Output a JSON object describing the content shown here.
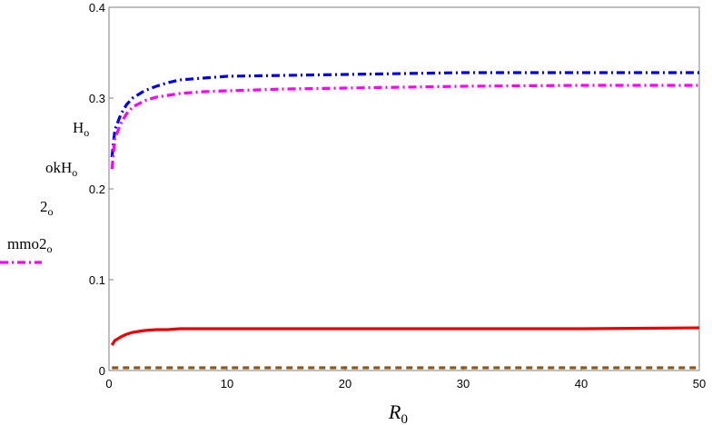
{
  "chart_data": {
    "type": "line",
    "xlabel": {
      "main": "R",
      "sub": "0"
    },
    "ylabel": "",
    "xlim": [
      0,
      50
    ],
    "ylim": [
      0,
      0.4
    ],
    "x_ticks": [
      "0",
      "10",
      "20",
      "30",
      "40",
      "50"
    ],
    "y_ticks": [
      "0",
      "0.1",
      "0.2",
      "0.3",
      "0.4"
    ],
    "grid": false,
    "legend_position": "left",
    "legend": [
      {
        "text": "H",
        "sub": "o"
      },
      {
        "text": "okH",
        "sub": "o"
      },
      {
        "text": "2",
        "sub": "o"
      },
      {
        "text": "mmo2",
        "sub": "o"
      }
    ],
    "series": [
      {
        "color": "#0000ee",
        "dash": "dash-dot",
        "x": [
          0.25,
          0.5,
          1,
          1.5,
          2,
          3,
          4,
          5,
          6,
          8,
          10,
          15,
          20,
          30,
          40,
          50
        ],
        "y": [
          0.235,
          0.265,
          0.282,
          0.293,
          0.3,
          0.308,
          0.313,
          0.317,
          0.32,
          0.322,
          0.324,
          0.325,
          0.326,
          0.328,
          0.328,
          0.328
        ]
      },
      {
        "color": "#ff00ff",
        "dash": "dash-dot",
        "x": [
          0.25,
          0.5,
          1,
          1.5,
          2,
          3,
          4,
          5,
          6,
          8,
          10,
          15,
          20,
          30,
          40,
          50
        ],
        "y": [
          0.222,
          0.255,
          0.272,
          0.283,
          0.29,
          0.297,
          0.301,
          0.303,
          0.305,
          0.307,
          0.308,
          0.31,
          0.311,
          0.313,
          0.314,
          0.314
        ]
      },
      {
        "color": "#ee0000",
        "dash": "solid",
        "x": [
          0.25,
          0.5,
          1,
          1.5,
          2,
          3,
          4,
          5,
          6,
          8,
          10,
          20,
          30,
          40,
          50
        ],
        "y": [
          0.028,
          0.033,
          0.037,
          0.04,
          0.042,
          0.044,
          0.045,
          0.045,
          0.046,
          0.046,
          0.046,
          0.046,
          0.046,
          0.046,
          0.047
        ]
      },
      {
        "color": "#8b5a1a",
        "dash": "dash",
        "x": [
          0.25,
          1,
          5,
          10,
          20,
          30,
          40,
          50
        ],
        "y": [
          0.003,
          0.003,
          0.003,
          0.003,
          0.003,
          0.003,
          0.003,
          0.003
        ]
      }
    ]
  }
}
